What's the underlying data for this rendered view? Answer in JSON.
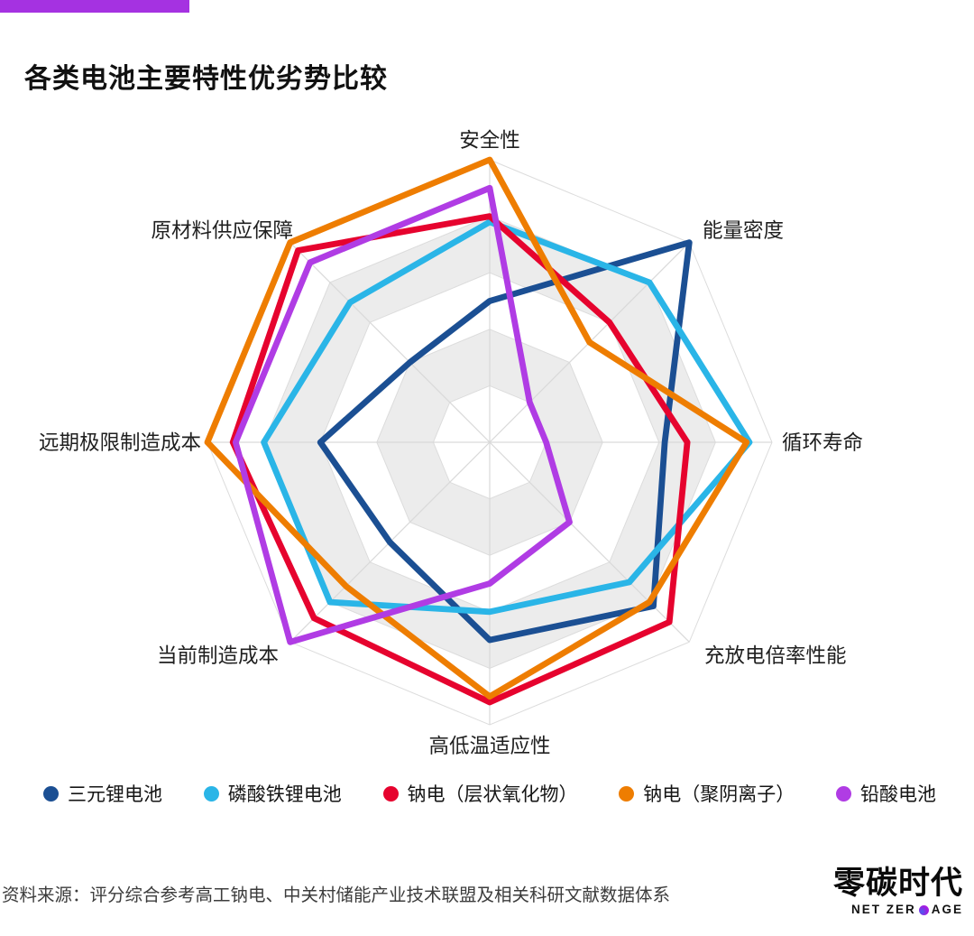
{
  "accent_bar": {
    "color": "#a532e1"
  },
  "title": "各类电池主要特性优劣势比较",
  "chart_data": {
    "type": "radar",
    "categories": [
      "安全性",
      "能量密度",
      "循环寿命",
      "充放电倍率性能",
      "高低温适应性",
      "当前制造成本",
      "远期极限制造成本",
      "原材料供应保障"
    ],
    "scale": {
      "rings": 5,
      "max": 5,
      "min": 0
    },
    "grid": {
      "shape": "octagon",
      "filled_bands": [
        [
          1,
          2
        ],
        [
          3,
          4
        ]
      ],
      "band_fill": "#ececec",
      "ring_line_color": "#dcdcdc",
      "spoke_line_color": "#d9d9d9"
    },
    "legend_position": "bottom",
    "series": [
      {
        "name": "三元锂电池",
        "color": "#1b4f93",
        "values": [
          2.5,
          5.0,
          3.1,
          4.1,
          3.5,
          2.5,
          3.0,
          2.0
        ]
      },
      {
        "name": "磷酸铁锂电池",
        "color": "#2ab5e7",
        "values": [
          3.9,
          4.0,
          4.6,
          3.5,
          3.0,
          4.0,
          4.0,
          3.5
        ]
      },
      {
        "name": "钠电（层状氧化物）",
        "color": "#e6032e",
        "values": [
          4.0,
          3.0,
          3.5,
          4.5,
          4.6,
          4.4,
          4.55,
          4.8
        ]
      },
      {
        "name": "钠电（聚阴离子）",
        "color": "#ee7d01",
        "values": [
          5.0,
          2.5,
          4.55,
          4.0,
          4.5,
          3.6,
          5.0,
          5.0
        ]
      },
      {
        "name": "铅酸电池",
        "color": "#b03ce4",
        "values": [
          4.5,
          1.0,
          1.0,
          2.0,
          2.5,
          5.0,
          4.5,
          4.5
        ]
      }
    ]
  },
  "footer": {
    "source": "资料来源：评分综合参考高工钠电、中关村储能产业技术联盟及相关科研文献数据体系",
    "logo_cn": "零碳时代",
    "logo_en_prefix": "NET ZER",
    "logo_en_suffix": "AGE",
    "logo_dot_color": "#9a1fe0"
  }
}
